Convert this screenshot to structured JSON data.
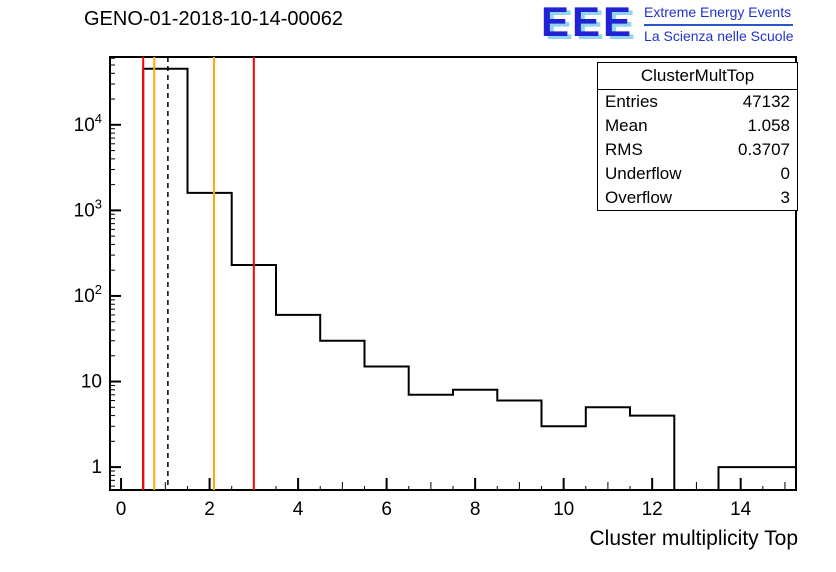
{
  "page": {
    "title": "GENO-01-2018-10-14-00062"
  },
  "logo": {
    "acronym": "EEE",
    "line1": "Extreme Energy Events",
    "line2": "La Scienza nelle Scuole",
    "blue": "#2121d6",
    "light_blue": "#8fd4f2"
  },
  "stats_box": {
    "title": "ClusterMultTop",
    "rows": [
      {
        "label": "Entries",
        "value": "47132"
      },
      {
        "label": "Mean",
        "value": "1.058"
      },
      {
        "label": "RMS",
        "value": "0.3707"
      },
      {
        "label": "Underflow",
        "value": "0"
      },
      {
        "label": "Overflow",
        "value": "3"
      }
    ]
  },
  "chart_data": {
    "type": "bar",
    "title": "GENO-01-2018-10-14-00062",
    "xlabel": "Cluster multiplicity Top",
    "ylabel": "",
    "y_scale": "log",
    "grid": false,
    "xlim": [
      -0.25,
      15.25
    ],
    "ylim": [
      0.54,
      62000
    ],
    "bin_width": 1,
    "bin_centers": [
      1,
      2,
      3,
      4,
      5,
      6,
      7,
      8,
      9,
      10,
      11,
      12,
      13,
      14,
      15
    ],
    "values": [
      45159,
      1600,
      230,
      60,
      30,
      15,
      7,
      8,
      6,
      3,
      5,
      4,
      0,
      1,
      1
    ],
    "x_ticks": [
      0,
      2,
      4,
      6,
      8,
      10,
      12,
      14
    ],
    "y_ticks": [
      {
        "value": 1,
        "label": "1"
      },
      {
        "value": 10,
        "label": "10"
      },
      {
        "value": 100,
        "label": "10^2"
      },
      {
        "value": 1000,
        "label": "10^3"
      },
      {
        "value": 10000,
        "label": "10^4"
      }
    ],
    "line_color": "#000000",
    "overlay_lines": [
      {
        "name": "lower-alarm-line",
        "x": 0.5,
        "color": "#ff0000",
        "style": "solid"
      },
      {
        "name": "upper-alarm-line",
        "x": 3.0,
        "color": "#ff0000",
        "style": "solid"
      },
      {
        "name": "lower-warning-line",
        "x": 0.75,
        "color": "#ffaa00",
        "style": "solid"
      },
      {
        "name": "upper-warning-line",
        "x": 2.1,
        "color": "#ffaa00",
        "style": "solid"
      },
      {
        "name": "mean-marker-line",
        "x": 1.058,
        "color": "#000000",
        "style": "dashed"
      }
    ]
  }
}
